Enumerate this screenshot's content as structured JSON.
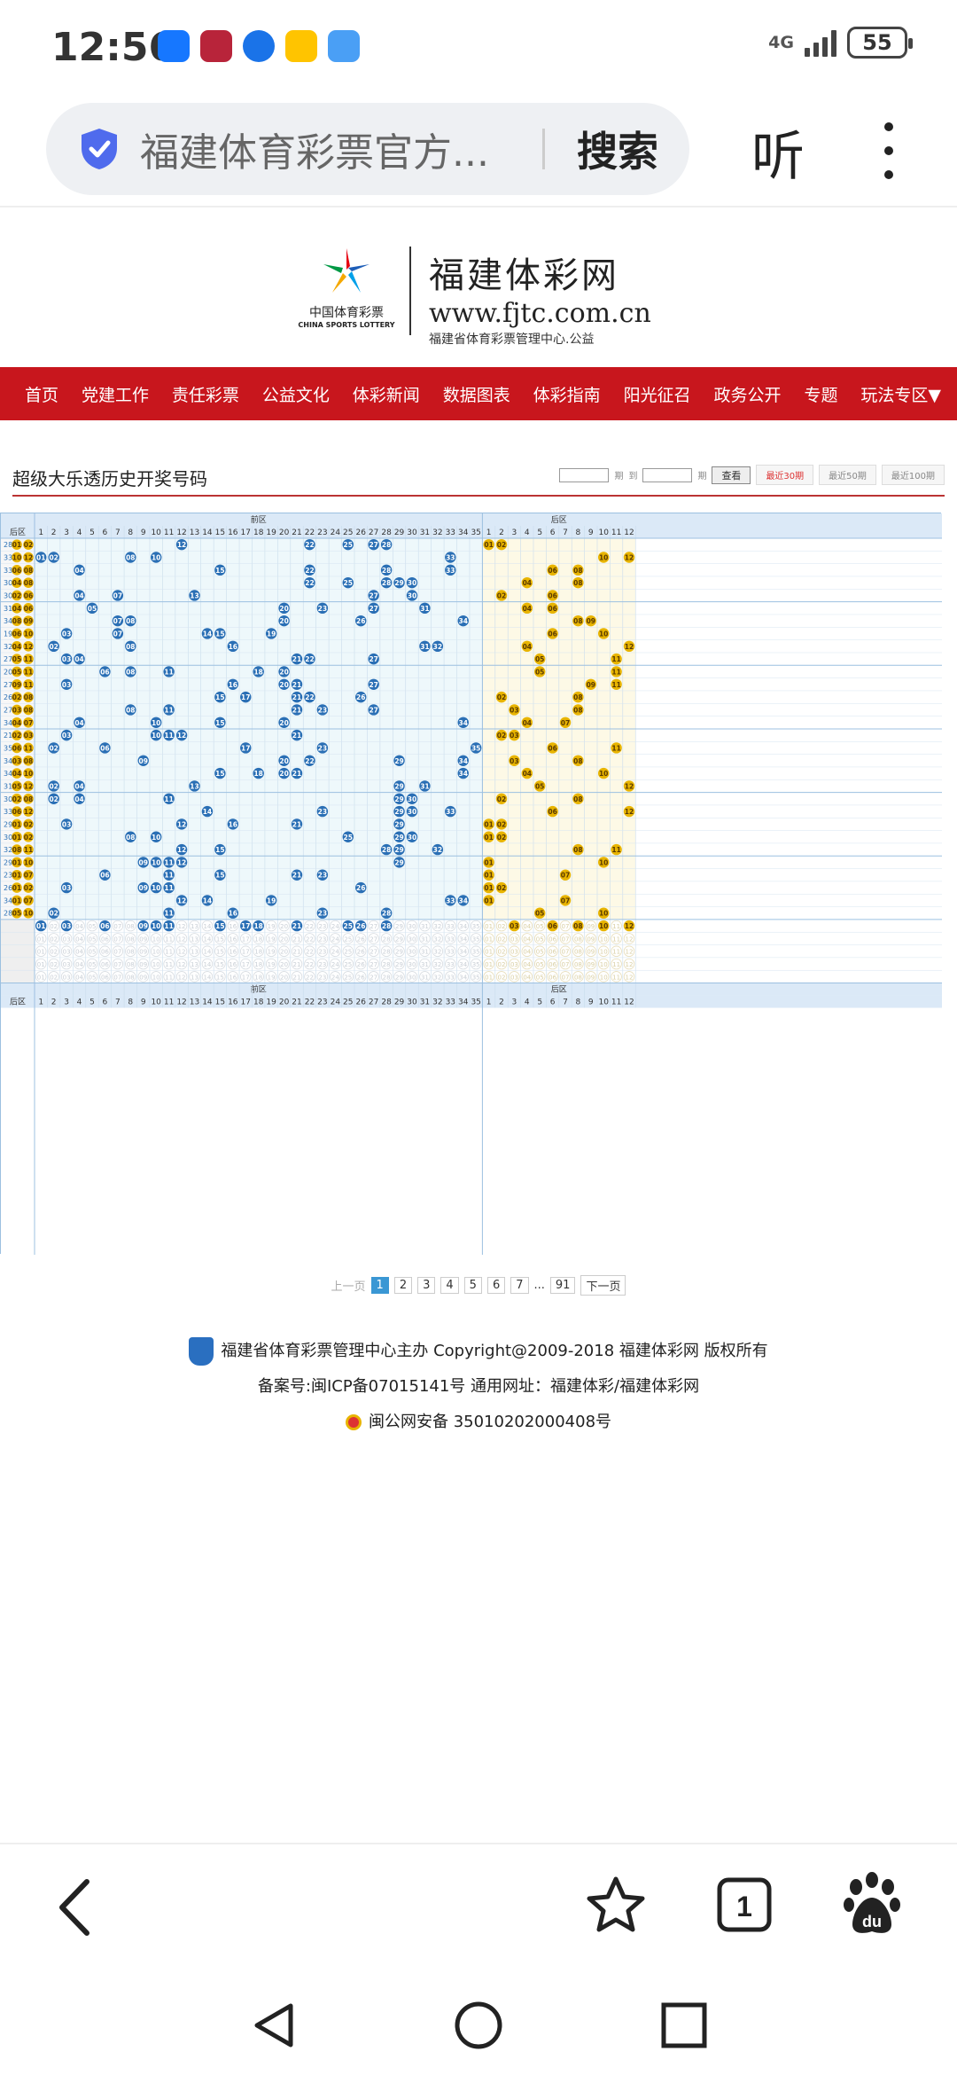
{
  "status_bar": {
    "time": "12:56",
    "network": "4G",
    "battery": "55"
  },
  "browser": {
    "url_text": "福建体育彩票官方...",
    "search_label": "搜索",
    "listen_label": "听"
  },
  "site": {
    "logo_cn": "中国体育彩票",
    "logo_en": "CHINA SPORTS LOTTERY",
    "title": "福建体彩网",
    "domain": "www.fjtc.com.cn",
    "subtitle": "福建省体育彩票管理中心.公益"
  },
  "nav": {
    "items": [
      "首页",
      "党建工作",
      "责任彩票",
      "公益文化",
      "体彩新闻",
      "数据图表",
      "体彩指南",
      "阳光征召",
      "政务公开",
      "专题",
      "玩法专区▼"
    ]
  },
  "page": {
    "heading": "超级大乐透历史开奖号码",
    "period_label": "期",
    "to_label": "到",
    "query_button": "查看",
    "recent_30": "最近30期",
    "recent_50": "最近50期",
    "recent_100": "最近100期"
  },
  "table": {
    "front_label": "前区",
    "back_label": "后区",
    "back_col_label": "后区",
    "front_columns": [
      "1",
      "2",
      "3",
      "4",
      "5",
      "6",
      "7",
      "8",
      "9",
      "10",
      "11",
      "12",
      "13",
      "14",
      "15",
      "16",
      "17",
      "18",
      "19",
      "20",
      "21",
      "22",
      "23",
      "24",
      "25",
      "26",
      "27",
      "28",
      "29",
      "30",
      "31",
      "32",
      "33",
      "34",
      "35"
    ],
    "back_columns": [
      "1",
      "2",
      "3",
      "4",
      "5",
      "6",
      "7",
      "8",
      "9",
      "10",
      "11",
      "12"
    ],
    "draws": [
      {
        "left": "28",
        "b": [
          "01",
          "02"
        ],
        "f": [
          12,
          22,
          25,
          27,
          28
        ],
        "bk": [
          1,
          2
        ]
      },
      {
        "left": "33",
        "b": [
          "10",
          "12"
        ],
        "f": [
          1,
          2,
          8,
          10,
          33
        ],
        "bk": [
          10,
          12
        ]
      },
      {
        "left": "33",
        "b": [
          "06",
          "08"
        ],
        "f": [
          4,
          15,
          22,
          28,
          33
        ],
        "bk": [
          6,
          8
        ]
      },
      {
        "left": "30",
        "b": [
          "04",
          "08"
        ],
        "f": [
          22,
          25,
          28,
          29,
          30
        ],
        "bk": [
          4,
          8
        ]
      },
      {
        "left": "30",
        "b": [
          "02",
          "06"
        ],
        "f": [
          4,
          7,
          13,
          27,
          30
        ],
        "bk": [
          2,
          6
        ]
      },
      {
        "left": "31",
        "b": [
          "04",
          "06"
        ],
        "f": [
          5,
          20,
          23,
          27,
          31
        ],
        "bk": [
          4,
          6
        ]
      },
      {
        "left": "34",
        "b": [
          "08",
          "09"
        ],
        "f": [
          7,
          8,
          20,
          26,
          34
        ],
        "bk": [
          8,
          9
        ]
      },
      {
        "left": "19",
        "b": [
          "06",
          "10"
        ],
        "f": [
          3,
          7,
          14,
          15,
          19
        ],
        "bk": [
          6,
          10
        ]
      },
      {
        "left": "32",
        "b": [
          "04",
          "12"
        ],
        "f": [
          2,
          8,
          16,
          31,
          32
        ],
        "bk": [
          4,
          12
        ]
      },
      {
        "left": "27",
        "b": [
          "05",
          "11"
        ],
        "f": [
          3,
          4,
          21,
          22,
          27
        ],
        "bk": [
          5,
          11
        ]
      },
      {
        "left": "20",
        "b": [
          "05",
          "11"
        ],
        "f": [
          6,
          8,
          11,
          18,
          20
        ],
        "bk": [
          5,
          11
        ]
      },
      {
        "left": "27",
        "b": [
          "09",
          "11"
        ],
        "f": [
          3,
          16,
          20,
          21,
          27
        ],
        "bk": [
          9,
          11
        ]
      },
      {
        "left": "26",
        "b": [
          "02",
          "08"
        ],
        "f": [
          15,
          17,
          21,
          22,
          26
        ],
        "bk": [
          2,
          8
        ]
      },
      {
        "left": "27",
        "b": [
          "03",
          "08"
        ],
        "f": [
          8,
          11,
          21,
          23,
          27
        ],
        "bk": [
          3,
          8
        ]
      },
      {
        "left": "34",
        "b": [
          "04",
          "07"
        ],
        "f": [
          4,
          10,
          15,
          20,
          34
        ],
        "bk": [
          4,
          7
        ]
      },
      {
        "left": "21",
        "b": [
          "02",
          "03"
        ],
        "f": [
          3,
          10,
          11,
          12,
          21
        ],
        "bk": [
          2,
          3
        ]
      },
      {
        "left": "35",
        "b": [
          "06",
          "11"
        ],
        "f": [
          2,
          6,
          17,
          23,
          35
        ],
        "bk": [
          6,
          11
        ]
      },
      {
        "left": "34",
        "b": [
          "03",
          "08"
        ],
        "f": [
          9,
          20,
          22,
          29,
          34
        ],
        "bk": [
          3,
          8
        ]
      },
      {
        "left": "34",
        "b": [
          "04",
          "10"
        ],
        "f": [
          15,
          18,
          20,
          21,
          34
        ],
        "bk": [
          4,
          10
        ]
      },
      {
        "left": "31",
        "b": [
          "05",
          "12"
        ],
        "f": [
          2,
          4,
          13,
          29,
          31
        ],
        "bk": [
          5,
          12
        ]
      },
      {
        "left": "30",
        "b": [
          "02",
          "08"
        ],
        "f": [
          2,
          4,
          11,
          29,
          30
        ],
        "bk": [
          2,
          8
        ]
      },
      {
        "left": "33",
        "b": [
          "06",
          "12"
        ],
        "f": [
          14,
          23,
          29,
          30,
          33
        ],
        "bk": [
          6,
          12
        ]
      },
      {
        "left": "29",
        "b": [
          "01",
          "02"
        ],
        "f": [
          3,
          12,
          16,
          21,
          29
        ],
        "bk": [
          1,
          2
        ]
      },
      {
        "left": "30",
        "b": [
          "01",
          "02"
        ],
        "f": [
          8,
          10,
          25,
          29,
          30
        ],
        "bk": [
          1,
          2
        ]
      },
      {
        "left": "32",
        "b": [
          "08",
          "11"
        ],
        "f": [
          12,
          15,
          28,
          29,
          32
        ],
        "bk": [
          8,
          11
        ]
      },
      {
        "left": "29",
        "b": [
          "01",
          "10"
        ],
        "f": [
          9,
          10,
          11,
          12,
          29
        ],
        "bk": [
          1,
          10
        ]
      },
      {
        "left": "23",
        "b": [
          "01",
          "07"
        ],
        "f": [
          6,
          11,
          15,
          21,
          23
        ],
        "bk": [
          1,
          7
        ]
      },
      {
        "left": "26",
        "b": [
          "01",
          "02"
        ],
        "f": [
          3,
          9,
          10,
          11,
          26
        ],
        "bk": [
          1,
          2
        ]
      },
      {
        "left": "34",
        "b": [
          "01",
          "07"
        ],
        "f": [
          12,
          14,
          19,
          33,
          34
        ],
        "bk": [
          1,
          7
        ]
      },
      {
        "left": "28",
        "b": [
          "05",
          "10"
        ],
        "f": [
          2,
          11,
          16,
          23,
          28
        ],
        "bk": [
          5,
          10
        ]
      }
    ],
    "stats_front_hit": [
      1,
      3,
      6,
      9,
      10,
      11,
      15,
      17,
      18,
      21,
      25,
      26,
      28
    ],
    "stats_back_hit": [
      3,
      6,
      8,
      10,
      12
    ]
  },
  "pager": {
    "prev": "上一页",
    "pages": [
      "1",
      "2",
      "3",
      "4",
      "5",
      "6",
      "7"
    ],
    "ellipsis": "...",
    "last": "91",
    "next": "下一页"
  },
  "footer": {
    "line1": "福建省体育彩票管理中心主办 Copyright@2009-2018 福建体彩网 版权所有",
    "line2": "备案号:闽ICP备07015141号    通用网址：福建体彩/福建体彩网",
    "line3": "闽公网安备 35010202000408号"
  },
  "colors": {
    "nav_red": "#c8161d",
    "front_ball": "#2a6fb5",
    "back_ball": "#e8b400"
  }
}
